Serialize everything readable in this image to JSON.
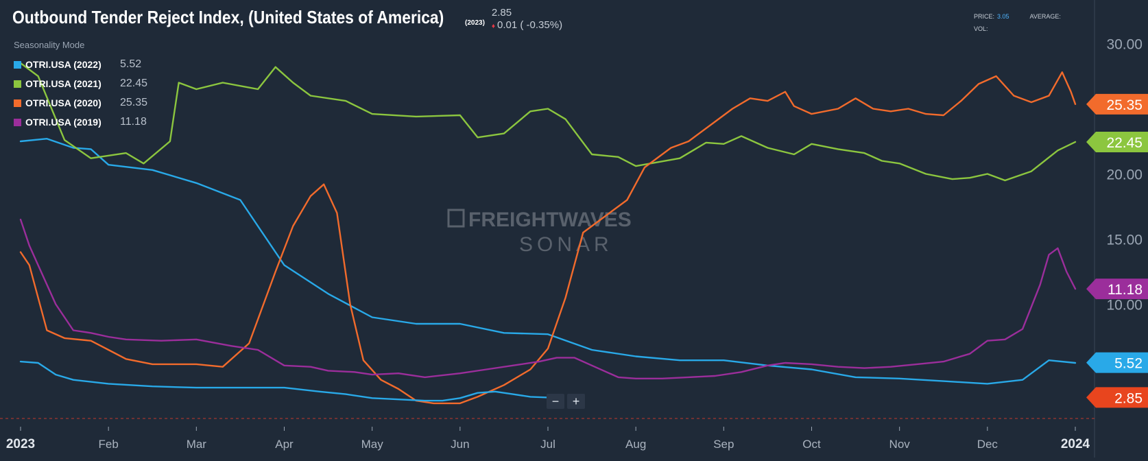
{
  "header": {
    "title": "Outbound Tender Reject Index, (United States of America)",
    "title_year": "(2023)",
    "last_value": "2.85",
    "change": "0.01 ( -0.35%)",
    "price_label": "PRICE:",
    "price_value": "3.05",
    "average_label": "AVERAGE:",
    "vol_label": "VOL:"
  },
  "mode_label": "Seasonality Mode",
  "legend": [
    {
      "name": "OTRI.USA (2022)",
      "value": "5.52",
      "color": "#29a9e8"
    },
    {
      "name": "OTRI.USA (2021)",
      "value": "22.45",
      "color": "#8cc63f"
    },
    {
      "name": "OTRI.USA (2020)",
      "value": "25.35",
      "color": "#f26b2c"
    },
    {
      "name": "OTRI.USA (2019)",
      "value": "11.18",
      "color": "#9b2e9b"
    }
  ],
  "zoom": {
    "minus": "−",
    "plus": "+"
  },
  "watermark": {
    "line1": "FREIGHTWAVES",
    "line2": "SONAR",
    "color": "#59616c"
  },
  "chart_data": {
    "type": "line",
    "x_labels": [
      "2023",
      "Feb",
      "Mar",
      "Apr",
      "May",
      "Jun",
      "Jul",
      "Aug",
      "Sep",
      "Oct",
      "Nov",
      "Dec",
      "2024"
    ],
    "y_ticks": [
      "30.00",
      "25.00",
      "20.00",
      "15.00",
      "10.00"
    ],
    "ylim": [
      1.5,
      31.5
    ],
    "xlim": [
      0,
      12
    ],
    "grid": false,
    "legend_position": "top-left",
    "price_markers": [
      {
        "label": "25.35",
        "value": 25.35,
        "color": "#f26b2c"
      },
      {
        "label": "22.45",
        "value": 22.45,
        "color": "#8cc63f"
      },
      {
        "label": "11.18",
        "value": 11.18,
        "color": "#9b2e9b"
      },
      {
        "label": "5.52",
        "value": 5.52,
        "color": "#29a9e8"
      },
      {
        "label": "2.85",
        "value": 2.85,
        "color": "#e8451e"
      }
    ],
    "series": [
      {
        "name": "OTRI.USA (2022)",
        "color": "#29a9e8",
        "points": [
          [
            0,
            22.5
          ],
          [
            0.3,
            22.7
          ],
          [
            0.6,
            22.0
          ],
          [
            0.8,
            21.9
          ],
          [
            1.0,
            20.7
          ],
          [
            1.5,
            20.3
          ],
          [
            2.0,
            19.3
          ],
          [
            2.5,
            18.0
          ],
          [
            3.0,
            13.0
          ],
          [
            3.5,
            10.8
          ],
          [
            4.0,
            9.0
          ],
          [
            4.5,
            8.5
          ],
          [
            5.0,
            8.5
          ],
          [
            5.5,
            7.8
          ],
          [
            6.0,
            7.7
          ],
          [
            6.5,
            6.5
          ],
          [
            7.0,
            6.0
          ],
          [
            7.5,
            5.7
          ],
          [
            8.0,
            5.7
          ],
          [
            8.5,
            5.3
          ],
          [
            9.0,
            5.0
          ],
          [
            9.5,
            4.4
          ],
          [
            10.0,
            4.3
          ],
          [
            10.5,
            4.1
          ],
          [
            11.0,
            3.9
          ],
          [
            11.4,
            4.2
          ],
          [
            11.7,
            5.7
          ],
          [
            12.0,
            5.5
          ]
        ]
      },
      {
        "name": "OTRI.USA (2021)",
        "color": "#8cc63f",
        "points": [
          [
            0,
            28.5
          ],
          [
            0.2,
            27.5
          ],
          [
            0.5,
            22.6
          ],
          [
            0.8,
            21.2
          ],
          [
            1.2,
            21.6
          ],
          [
            1.4,
            20.8
          ],
          [
            1.7,
            22.5
          ],
          [
            1.8,
            27.0
          ],
          [
            2.0,
            26.5
          ],
          [
            2.3,
            27.0
          ],
          [
            2.7,
            26.5
          ],
          [
            2.9,
            28.2
          ],
          [
            3.1,
            27.0
          ],
          [
            3.3,
            26.0
          ],
          [
            3.7,
            25.6
          ],
          [
            4.0,
            24.6
          ],
          [
            4.5,
            24.4
          ],
          [
            5.0,
            24.5
          ],
          [
            5.2,
            22.8
          ],
          [
            5.5,
            23.1
          ],
          [
            5.8,
            24.8
          ],
          [
            6.0,
            25.0
          ],
          [
            6.2,
            24.2
          ],
          [
            6.5,
            21.5
          ],
          [
            6.8,
            21.3
          ],
          [
            7.0,
            20.6
          ],
          [
            7.5,
            21.2
          ],
          [
            7.8,
            22.4
          ],
          [
            8.0,
            22.3
          ],
          [
            8.2,
            22.9
          ],
          [
            8.5,
            22.0
          ],
          [
            8.8,
            21.5
          ],
          [
            9.0,
            22.3
          ],
          [
            9.3,
            21.9
          ],
          [
            9.6,
            21.6
          ],
          [
            9.8,
            21.0
          ],
          [
            10.0,
            20.8
          ],
          [
            10.3,
            20.0
          ],
          [
            10.6,
            19.6
          ],
          [
            10.8,
            19.7
          ],
          [
            11.0,
            20.0
          ],
          [
            11.2,
            19.5
          ],
          [
            11.5,
            20.2
          ],
          [
            11.8,
            21.8
          ],
          [
            12.0,
            22.45
          ]
        ]
      },
      {
        "name": "OTRI.USA (2020)",
        "color": "#f26b2c",
        "points": [
          [
            0,
            14.0
          ],
          [
            0.1,
            13.0
          ],
          [
            0.2,
            10.5
          ],
          [
            0.3,
            8.0
          ],
          [
            0.5,
            7.4
          ],
          [
            0.8,
            7.2
          ],
          [
            1.0,
            6.5
          ],
          [
            1.2,
            5.8
          ],
          [
            1.5,
            5.4
          ],
          [
            2.0,
            5.4
          ],
          [
            2.3,
            5.2
          ],
          [
            2.6,
            7.0
          ],
          [
            2.9,
            12.5
          ],
          [
            3.1,
            16.0
          ],
          [
            3.3,
            18.3
          ],
          [
            3.45,
            19.2
          ],
          [
            3.6,
            17.0
          ],
          [
            3.75,
            10.0
          ],
          [
            3.9,
            5.7
          ],
          [
            4.1,
            4.2
          ],
          [
            4.3,
            3.5
          ],
          [
            4.5,
            2.6
          ],
          [
            4.7,
            2.4
          ],
          [
            5.0,
            2.4
          ],
          [
            5.2,
            2.9
          ],
          [
            5.5,
            3.8
          ],
          [
            5.8,
            5.0
          ],
          [
            6.0,
            6.6
          ],
          [
            6.2,
            10.5
          ],
          [
            6.4,
            15.5
          ],
          [
            6.6,
            16.5
          ],
          [
            6.9,
            18.0
          ],
          [
            7.1,
            20.5
          ],
          [
            7.4,
            22.0
          ],
          [
            7.6,
            22.5
          ],
          [
            7.9,
            24.0
          ],
          [
            8.1,
            25.0
          ],
          [
            8.3,
            25.8
          ],
          [
            8.5,
            25.6
          ],
          [
            8.7,
            26.3
          ],
          [
            8.8,
            25.2
          ],
          [
            9.0,
            24.6
          ],
          [
            9.3,
            25.0
          ],
          [
            9.5,
            25.8
          ],
          [
            9.7,
            25.0
          ],
          [
            9.9,
            24.8
          ],
          [
            10.1,
            25.0
          ],
          [
            10.3,
            24.6
          ],
          [
            10.5,
            24.5
          ],
          [
            10.7,
            25.6
          ],
          [
            10.9,
            26.9
          ],
          [
            11.1,
            27.5
          ],
          [
            11.3,
            26.0
          ],
          [
            11.5,
            25.5
          ],
          [
            11.7,
            26.0
          ],
          [
            11.85,
            27.8
          ],
          [
            11.95,
            26.3
          ],
          [
            12.0,
            25.35
          ]
        ]
      },
      {
        "name": "OTRI.USA (2019)",
        "color": "#9b2e9b",
        "points": [
          [
            0,
            16.5
          ],
          [
            0.1,
            14.5
          ],
          [
            0.2,
            13.0
          ],
          [
            0.4,
            10.0
          ],
          [
            0.6,
            8.0
          ],
          [
            0.8,
            7.8
          ],
          [
            1.0,
            7.5
          ],
          [
            1.2,
            7.3
          ],
          [
            1.6,
            7.2
          ],
          [
            2.0,
            7.3
          ],
          [
            2.4,
            6.8
          ],
          [
            2.7,
            6.5
          ],
          [
            3.0,
            5.3
          ],
          [
            3.3,
            5.2
          ],
          [
            3.5,
            4.9
          ],
          [
            3.8,
            4.8
          ],
          [
            4.0,
            4.6
          ],
          [
            4.3,
            4.7
          ],
          [
            4.6,
            4.4
          ],
          [
            5.0,
            4.7
          ],
          [
            5.3,
            5.0
          ],
          [
            5.6,
            5.3
          ],
          [
            5.9,
            5.6
          ],
          [
            6.1,
            5.9
          ],
          [
            6.3,
            5.9
          ],
          [
            6.5,
            5.3
          ],
          [
            6.8,
            4.4
          ],
          [
            7.0,
            4.3
          ],
          [
            7.3,
            4.3
          ],
          [
            7.6,
            4.4
          ],
          [
            7.9,
            4.5
          ],
          [
            8.2,
            4.8
          ],
          [
            8.5,
            5.3
          ],
          [
            8.7,
            5.5
          ],
          [
            9.0,
            5.4
          ],
          [
            9.3,
            5.2
          ],
          [
            9.6,
            5.1
          ],
          [
            9.9,
            5.2
          ],
          [
            10.2,
            5.4
          ],
          [
            10.5,
            5.6
          ],
          [
            10.8,
            6.2
          ],
          [
            11.0,
            7.2
          ],
          [
            11.2,
            7.3
          ],
          [
            11.4,
            8.1
          ],
          [
            11.6,
            11.5
          ],
          [
            11.7,
            13.8
          ],
          [
            11.8,
            14.3
          ],
          [
            11.9,
            12.5
          ],
          [
            12.0,
            11.18
          ]
        ]
      },
      {
        "name": "OTRI.USA (2023)",
        "color": "#29a9e8",
        "points": [
          [
            0,
            5.6
          ],
          [
            0.2,
            5.5
          ],
          [
            0.4,
            4.6
          ],
          [
            0.6,
            4.2
          ],
          [
            1.0,
            3.9
          ],
          [
            1.5,
            3.7
          ],
          [
            2.0,
            3.6
          ],
          [
            2.5,
            3.6
          ],
          [
            3.0,
            3.6
          ],
          [
            3.4,
            3.3
          ],
          [
            3.7,
            3.1
          ],
          [
            4.0,
            2.8
          ],
          [
            4.3,
            2.7
          ],
          [
            4.6,
            2.6
          ],
          [
            4.8,
            2.6
          ],
          [
            5.0,
            2.8
          ],
          [
            5.2,
            3.2
          ],
          [
            5.4,
            3.3
          ],
          [
            5.6,
            3.1
          ],
          [
            5.8,
            2.9
          ],
          [
            6.0,
            2.85
          ]
        ]
      }
    ]
  }
}
